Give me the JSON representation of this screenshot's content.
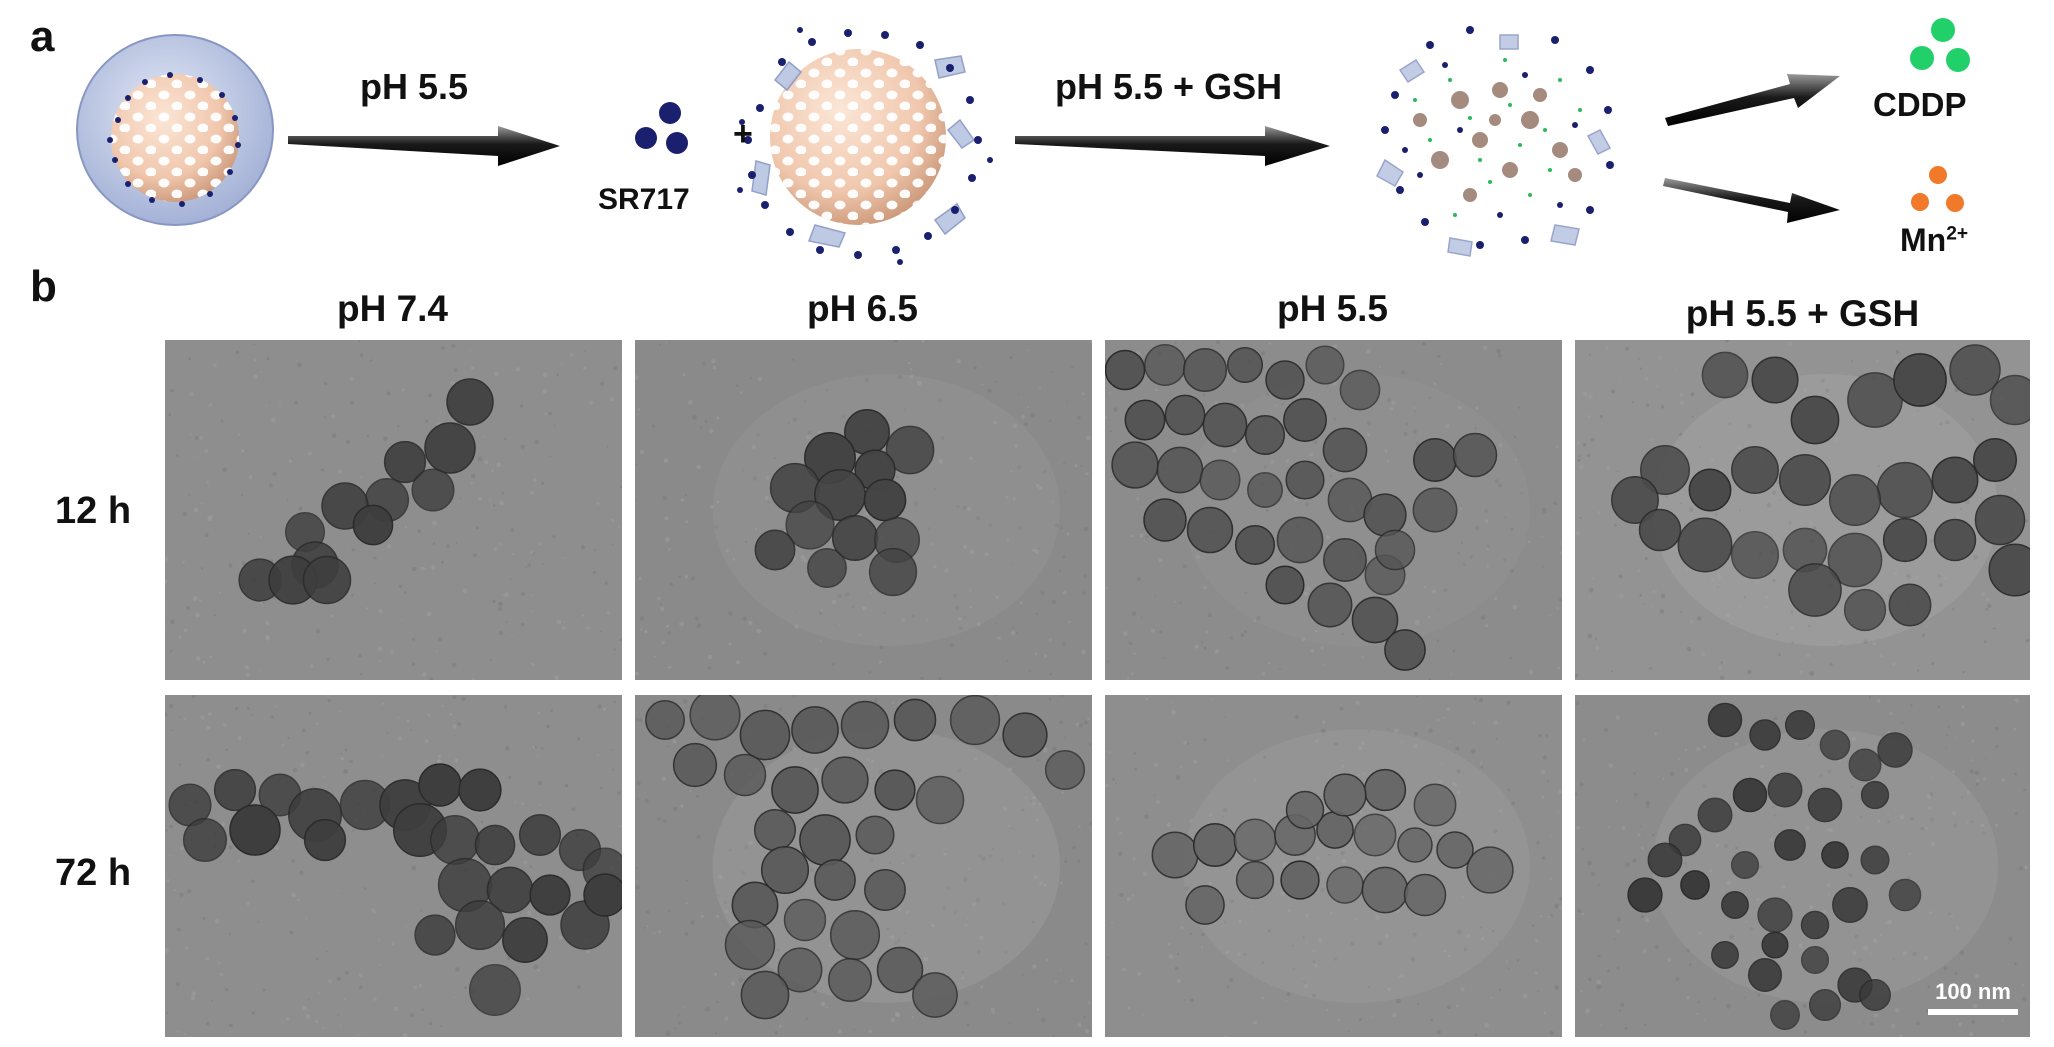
{
  "panel_a": {
    "letter": "a",
    "arrow1_label": "pH 5.5",
    "plus": "+",
    "drug_label": "SR717",
    "arrow2_label": "pH 5.5 + GSH",
    "product1_label": "CDDP",
    "product2_base": "Mn",
    "product2_sup": "2+",
    "colors": {
      "sr717": "#1a1f6e",
      "cddp": "#22d06a",
      "mn": "#f07a2a",
      "core": "#f0c7ad",
      "shell": "#b8c4e0"
    }
  },
  "panel_b": {
    "letter": "b",
    "columns": [
      "pH 7.4",
      "pH 6.5",
      "pH 5.5",
      "pH 5.5 + GSH"
    ],
    "rows": [
      "12 h",
      "72 h"
    ],
    "scale_bar": "100 nm"
  }
}
